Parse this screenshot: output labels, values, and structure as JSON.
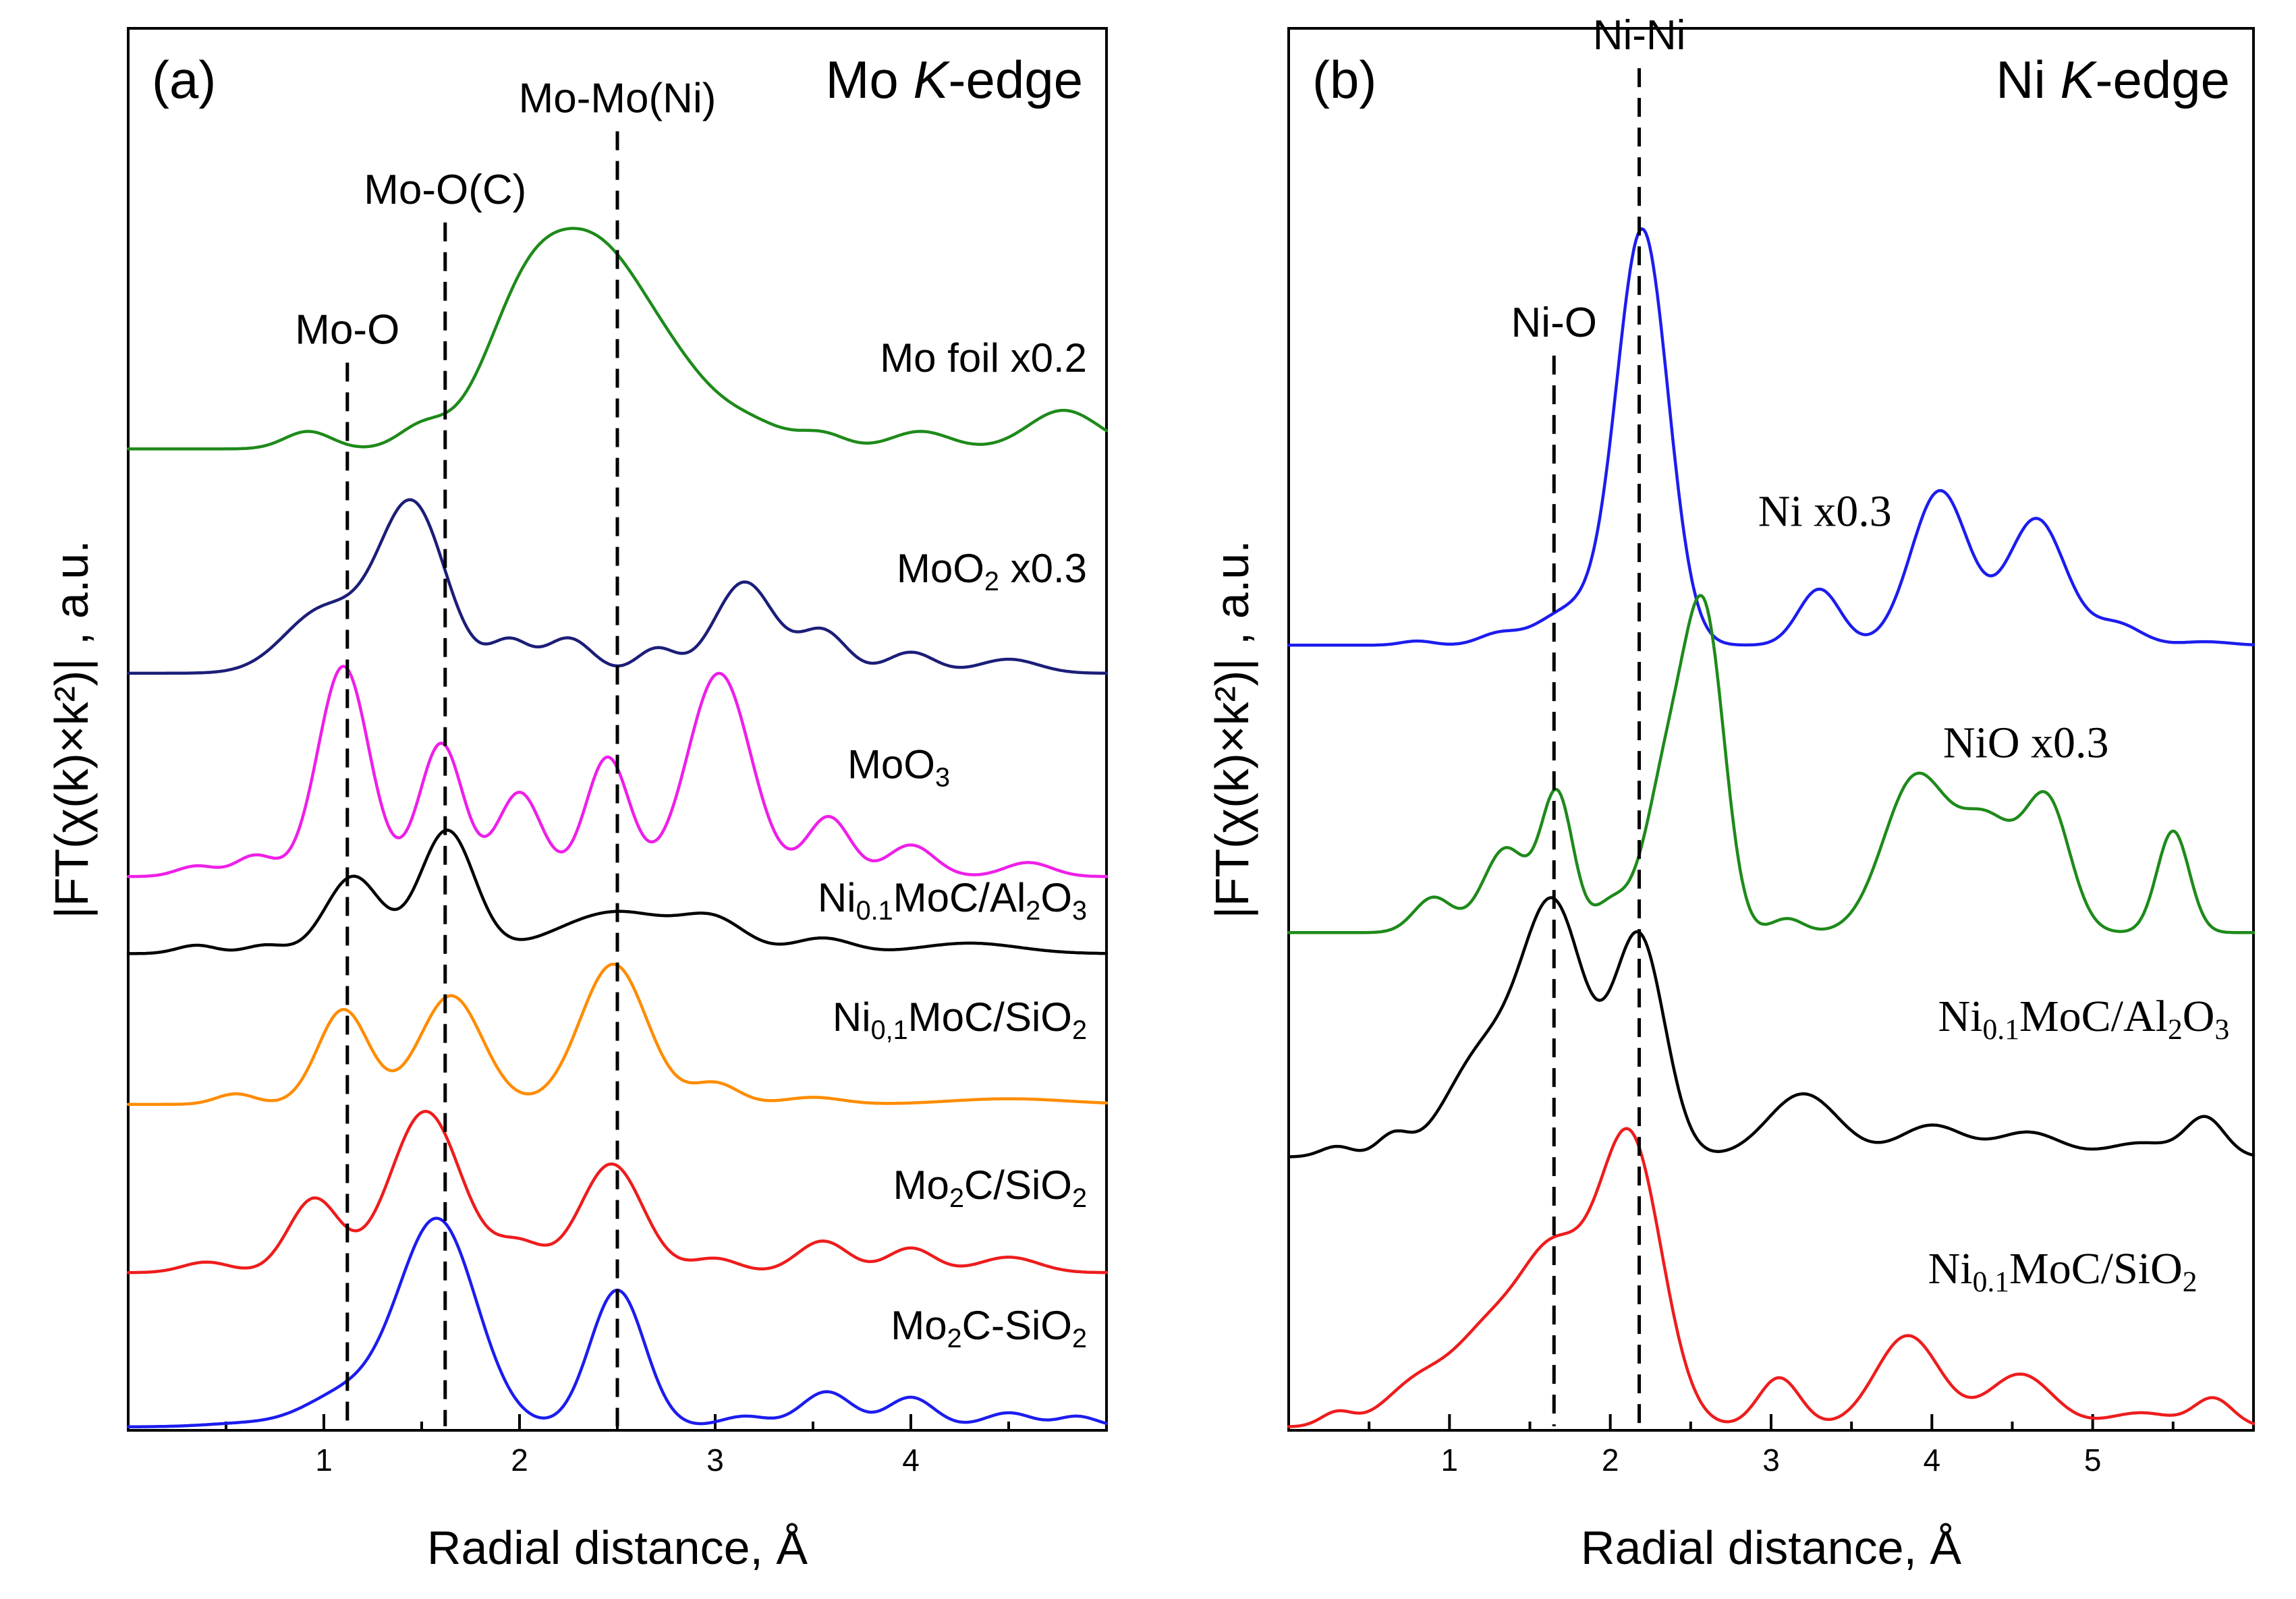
{
  "colors": {
    "green": "#1e8a1a",
    "navy": "#1b1e78",
    "magenta": "#ee1fe8",
    "black": "#000000",
    "orange": "#ff8c00",
    "red": "#ee1c1c",
    "blue": "#1c1cee"
  },
  "chart_data": [
    {
      "panel": "(a)",
      "type": "line",
      "edge": "Mo K-edge",
      "edge_parts": {
        "pre": "Mo ",
        "it": "K",
        "post": "-edge"
      },
      "xlabel": "Radial distance, Å",
      "ylabel": "|FT(χ(k)×k²)| , a.u.",
      "xlim": [
        0,
        5
      ],
      "xticks": [
        1,
        2,
        3,
        4
      ],
      "ylim": [
        0,
        20
      ],
      "yticks_shown": false,
      "reference_lines": [
        {
          "x": 1.12,
          "label": "Mo-O",
          "label_y": 15.5
        },
        {
          "x": 1.62,
          "label": "Mo-O(C)",
          "label_y": 17.5
        },
        {
          "x": 2.5,
          "label": "Mo-Mo(Ni)",
          "label_y": 18.8
        }
      ],
      "series": [
        {
          "name": "Mo foil x0.2",
          "label_parts": [
            {
              "t": "Mo foil x0.2"
            }
          ],
          "label_font": "sans",
          "label_pos": [
            4.9,
            15.1
          ],
          "color": "green",
          "baseline": 14.0,
          "peaks": [
            [
              0.92,
              0.25,
              0.12
            ],
            [
              1.5,
              0.3,
              0.12
            ],
            [
              2.05,
              2.2,
              0.22
            ],
            [
              2.42,
              2.2,
              0.22
            ],
            [
              2.78,
              1.0,
              0.22
            ],
            [
              3.2,
              0.3,
              0.18
            ],
            [
              3.55,
              0.2,
              0.12
            ],
            [
              4.05,
              0.25,
              0.15
            ],
            [
              4.78,
              0.55,
              0.18
            ]
          ]
        },
        {
          "name": "MoO2 x0.3",
          "label_parts": [
            {
              "t": "MoO"
            },
            {
              "t": "2",
              "sub": true
            },
            {
              "t": " x0.3"
            }
          ],
          "label_font": "sans",
          "label_pos": [
            4.9,
            12.1
          ],
          "color": "navy",
          "baseline": 10.8,
          "peaks": [
            [
              1.0,
              0.9,
              0.2
            ],
            [
              1.45,
              2.4,
              0.17
            ],
            [
              1.95,
              0.45,
              0.1
            ],
            [
              2.25,
              0.5,
              0.12
            ],
            [
              2.7,
              0.35,
              0.1
            ],
            [
              3.15,
              1.3,
              0.15
            ],
            [
              3.55,
              0.6,
              0.12
            ],
            [
              4.0,
              0.3,
              0.12
            ],
            [
              4.5,
              0.2,
              0.15
            ]
          ]
        },
        {
          "name": "MoO3",
          "label_parts": [
            {
              "t": "MoO"
            },
            {
              "t": "3",
              "sub": true
            }
          ],
          "label_font": "sans",
          "label_pos": [
            4.2,
            9.3
          ],
          "color": "magenta",
          "baseline": 7.9,
          "peaks": [
            [
              0.35,
              0.15,
              0.1
            ],
            [
              0.65,
              0.3,
              0.1
            ],
            [
              1.1,
              3.0,
              0.13
            ],
            [
              1.6,
              1.9,
              0.11
            ],
            [
              2.0,
              1.2,
              0.11
            ],
            [
              2.45,
              1.7,
              0.11
            ],
            [
              3.02,
              2.9,
              0.16
            ],
            [
              3.58,
              0.85,
              0.11
            ],
            [
              4.0,
              0.45,
              0.12
            ],
            [
              4.6,
              0.2,
              0.12
            ]
          ]
        },
        {
          "name": "Ni0.1MoC/Al2O3",
          "label_parts": [
            {
              "t": "Ni"
            },
            {
              "t": "0.1",
              "sub": true
            },
            {
              "t": "MoC/Al"
            },
            {
              "t": "2",
              "sub": true
            },
            {
              "t": "O"
            },
            {
              "t": "3",
              "sub": true
            }
          ],
          "label_font": "sans",
          "label_pos": [
            4.9,
            7.4
          ],
          "color": "black",
          "baseline": 6.8,
          "peaks": [
            [
              0.35,
              0.12,
              0.1
            ],
            [
              0.7,
              0.12,
              0.1
            ],
            [
              1.15,
              1.1,
              0.14
            ],
            [
              1.63,
              1.75,
              0.14
            ],
            [
              2.5,
              0.6,
              0.3
            ],
            [
              3.0,
              0.4,
              0.16
            ],
            [
              3.55,
              0.22,
              0.15
            ],
            [
              4.3,
              0.15,
              0.25
            ]
          ]
        },
        {
          "name": "Ni0,1MoC/SiO2",
          "label_parts": [
            {
              "t": "Ni"
            },
            {
              "t": "0,1",
              "sub": true
            },
            {
              "t": "MoC/SiO"
            },
            {
              "t": "2",
              "sub": true
            }
          ],
          "label_font": "sans",
          "label_pos": [
            4.9,
            5.7
          ],
          "color": "orange",
          "baseline": 4.65,
          "peaks": [
            [
              0.55,
              0.15,
              0.1
            ],
            [
              1.1,
              1.35,
              0.13
            ],
            [
              1.65,
              1.55,
              0.16
            ],
            [
              2.48,
              2.0,
              0.17
            ],
            [
              3.0,
              0.3,
              0.12
            ],
            [
              3.5,
              0.1,
              0.15
            ],
            [
              4.5,
              0.08,
              0.3
            ]
          ]
        },
        {
          "name": "Mo2C/SiO2",
          "label_parts": [
            {
              "t": "Mo"
            },
            {
              "t": "2",
              "sub": true
            },
            {
              "t": "C/SiO"
            },
            {
              "t": "2",
              "sub": true
            }
          ],
          "label_font": "sans",
          "label_pos": [
            4.9,
            3.3
          ],
          "color": "red",
          "baseline": 2.25,
          "peaks": [
            [
              0.4,
              0.15,
              0.12
            ],
            [
              0.95,
              1.05,
              0.13
            ],
            [
              1.52,
              2.3,
              0.18
            ],
            [
              2.0,
              0.4,
              0.12
            ],
            [
              2.47,
              1.55,
              0.16
            ],
            [
              3.0,
              0.2,
              0.12
            ],
            [
              3.55,
              0.45,
              0.13
            ],
            [
              4.0,
              0.35,
              0.12
            ],
            [
              4.5,
              0.22,
              0.15
            ]
          ]
        },
        {
          "name": "Mo2C-SiO2",
          "label_parts": [
            {
              "t": "Mo"
            },
            {
              "t": "2",
              "sub": true
            },
            {
              "t": "C-SiO"
            },
            {
              "t": "2",
              "sub": true
            }
          ],
          "label_font": "sans",
          "label_pos": [
            4.9,
            1.3
          ],
          "color": "blue",
          "baseline": 0.05,
          "peaks": [
            [
              0.6,
              0.05,
              0.2
            ],
            [
              1.1,
              0.45,
              0.2
            ],
            [
              1.58,
              2.95,
              0.2
            ],
            [
              2.5,
              1.95,
              0.14
            ],
            [
              3.15,
              0.15,
              0.12
            ],
            [
              3.57,
              0.5,
              0.13
            ],
            [
              4.0,
              0.42,
              0.12
            ],
            [
              4.5,
              0.2,
              0.12
            ],
            [
              4.85,
              0.15,
              0.1
            ]
          ]
        }
      ]
    },
    {
      "panel": "(b)",
      "type": "line",
      "edge": "Ni K-edge",
      "edge_parts": {
        "pre": "Ni ",
        "it": "K",
        "post": "-edge"
      },
      "xlabel": "Radial distance, Å",
      "ylabel": "|FT(χ(k)×k²)| , a.u.",
      "xlim": [
        0,
        6
      ],
      "xticks": [
        1,
        2,
        3,
        4,
        5
      ],
      "ylim": [
        0,
        20
      ],
      "yticks_shown": false,
      "reference_lines": [
        {
          "x": 1.65,
          "label": "Ni-O",
          "label_y": 15.6
        },
        {
          "x": 2.18,
          "label": "Ni-Ni",
          "label_y": 19.7
        }
      ],
      "series": [
        {
          "name": "Ni x0.3",
          "label_parts": [
            {
              "t": "Ni x0.3"
            }
          ],
          "label_font": "serif",
          "label_pos": [
            3.75,
            12.9
          ],
          "color": "blue",
          "baseline": 11.2,
          "peaks": [
            [
              0.8,
              0.06,
              0.1
            ],
            [
              1.3,
              0.15,
              0.12
            ],
            [
              1.75,
              0.5,
              0.2
            ],
            [
              2.2,
              5.9,
              0.16
            ],
            [
              3.3,
              0.8,
              0.13
            ],
            [
              4.05,
              2.2,
              0.18
            ],
            [
              4.65,
              1.8,
              0.18
            ],
            [
              5.15,
              0.3,
              0.15
            ],
            [
              5.7,
              0.05,
              0.15
            ]
          ]
        },
        {
          "name": "NiO x0.3",
          "label_parts": [
            {
              "t": "NiO x0.3"
            }
          ],
          "label_font": "serif",
          "label_pos": [
            5.1,
            9.6
          ],
          "color": "green",
          "baseline": 7.1,
          "peaks": [
            [
              0.9,
              0.5,
              0.12
            ],
            [
              1.35,
              1.2,
              0.14
            ],
            [
              1.67,
              1.95,
              0.1
            ],
            [
              2.0,
              0.4,
              0.1
            ],
            [
              2.38,
              2.5,
              0.15
            ],
            [
              2.6,
              3.8,
              0.12
            ],
            [
              3.1,
              0.2,
              0.1
            ],
            [
              3.9,
              2.2,
              0.2
            ],
            [
              4.35,
              1.5,
              0.18
            ],
            [
              4.72,
              1.8,
              0.14
            ],
            [
              5.5,
              1.45,
              0.1
            ]
          ]
        },
        {
          "name": "Ni0.1MoC/Al2O3",
          "label_parts": [
            {
              "t": "Ni"
            },
            {
              "t": "0.1",
              "sub": true
            },
            {
              "t": "MoC/Al"
            },
            {
              "t": "2",
              "sub": true
            },
            {
              "t": "O"
            },
            {
              "t": "3",
              "sub": true
            }
          ],
          "label_font": "serif",
          "label_pos": [
            5.85,
            5.7
          ],
          "color": "black",
          "baseline": 3.9,
          "peaks": [
            [
              0.3,
              0.15,
              0.1
            ],
            [
              0.65,
              0.3,
              0.1
            ],
            [
              1.2,
              1.4,
              0.22
            ],
            [
              1.65,
              3.5,
              0.2
            ],
            [
              2.18,
              3.1,
              0.16
            ],
            [
              3.2,
              0.9,
              0.22
            ],
            [
              4.0,
              0.45,
              0.2
            ],
            [
              4.6,
              0.35,
              0.2
            ],
            [
              5.3,
              0.2,
              0.2
            ],
            [
              5.7,
              0.55,
              0.12
            ]
          ]
        },
        {
          "name": "Ni0.1MoC/SiO2",
          "label_parts": [
            {
              "t": "Ni"
            },
            {
              "t": "0.1",
              "sub": true
            },
            {
              "t": "MoC/SiO"
            },
            {
              "t": "2",
              "sub": true
            }
          ],
          "label_font": "serif",
          "label_pos": [
            5.65,
            2.1
          ],
          "color": "red",
          "baseline": 0.05,
          "peaks": [
            [
              0.3,
              0.2,
              0.1
            ],
            [
              0.8,
              0.6,
              0.2
            ],
            [
              1.25,
              1.3,
              0.22
            ],
            [
              1.65,
              2.2,
              0.2
            ],
            [
              2.12,
              4.1,
              0.2
            ],
            [
              3.05,
              0.7,
              0.13
            ],
            [
              3.85,
              1.3,
              0.2
            ],
            [
              4.55,
              0.75,
              0.2
            ],
            [
              5.3,
              0.2,
              0.2
            ],
            [
              5.75,
              0.4,
              0.12
            ]
          ]
        }
      ]
    }
  ]
}
